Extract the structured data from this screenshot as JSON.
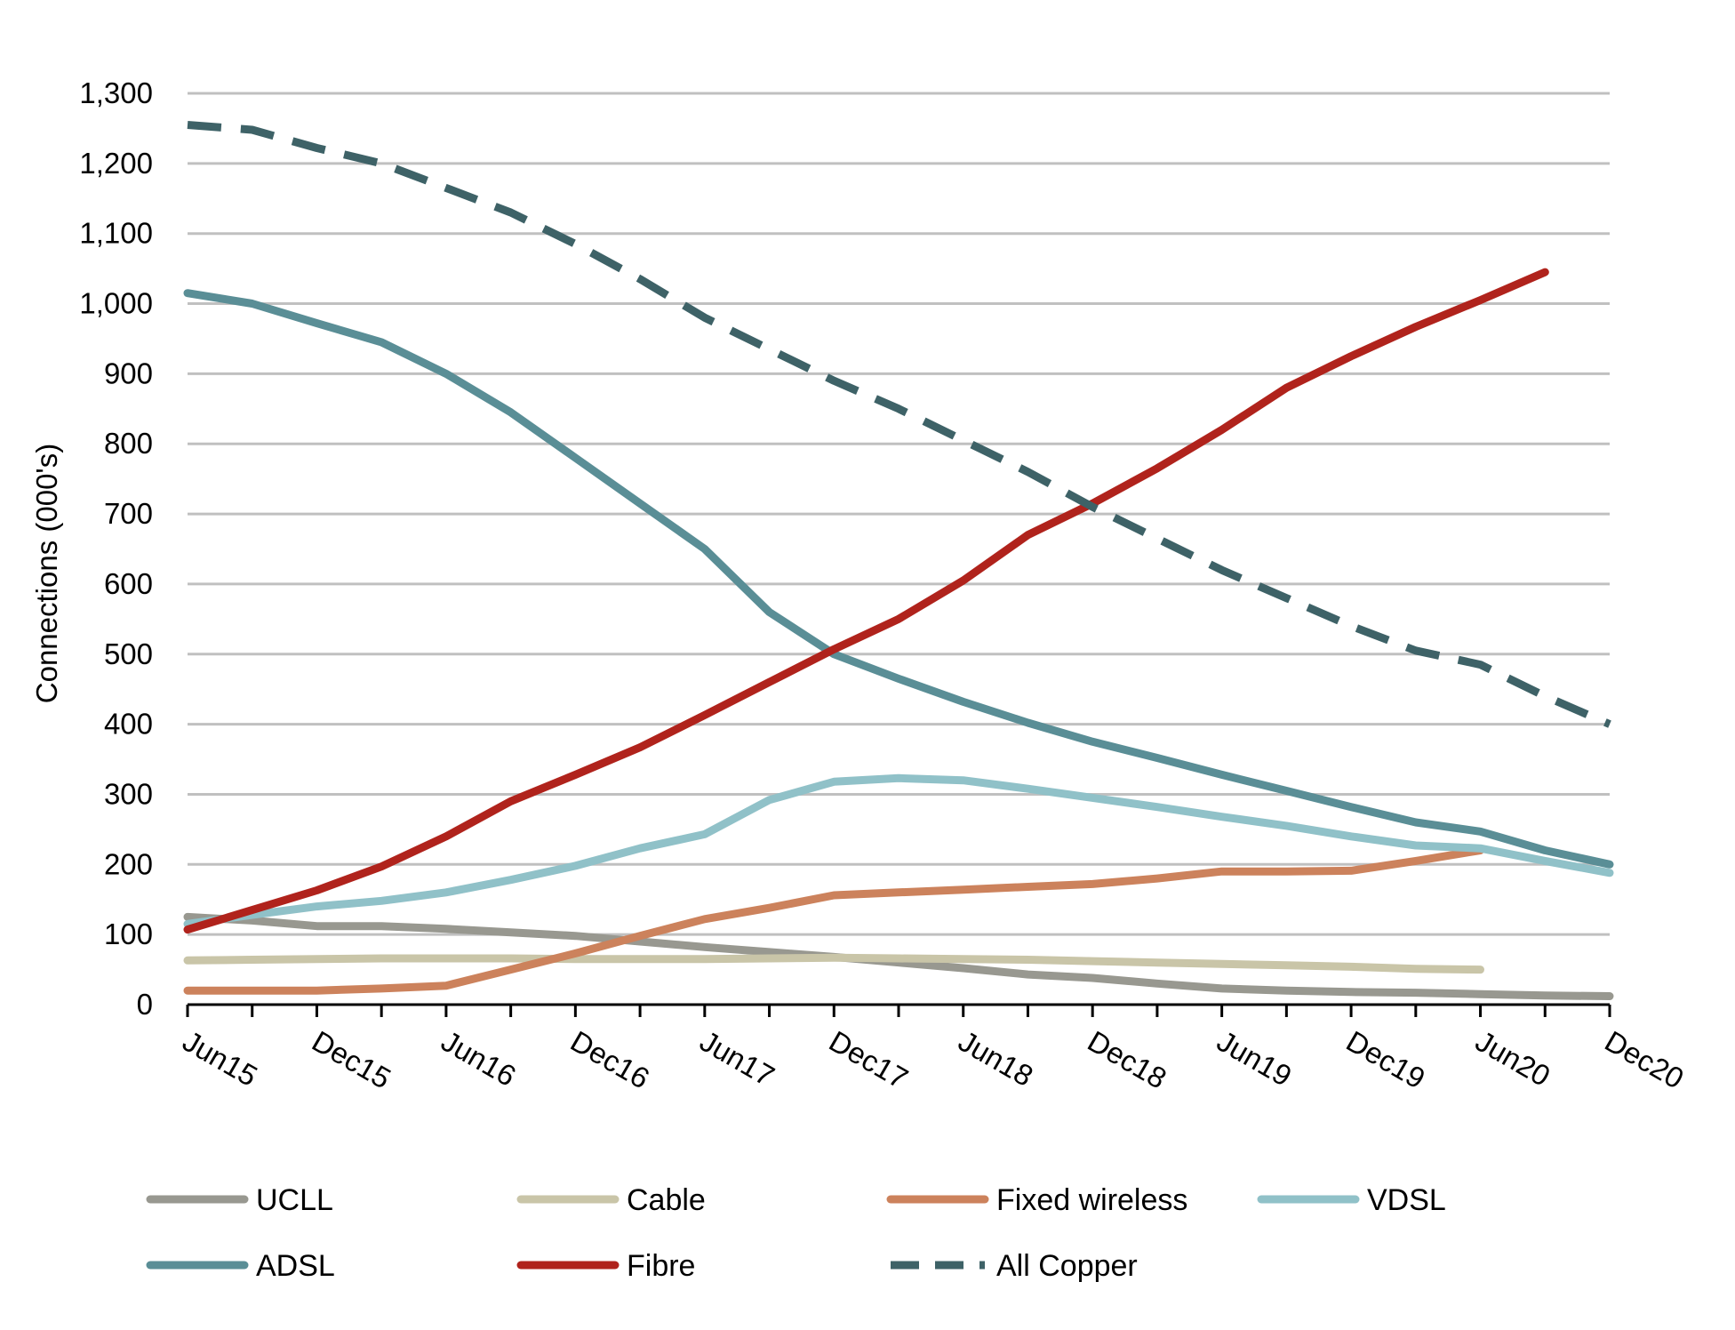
{
  "chart_data": {
    "type": "line",
    "title": "",
    "xlabel": "",
    "ylabel": "Connections (000's)",
    "ylim": [
      0,
      1300
    ],
    "yticks": [
      0,
      100,
      200,
      300,
      400,
      500,
      600,
      700,
      800,
      900,
      1000,
      1100,
      1200,
      1300
    ],
    "ytick_labels": [
      "0",
      "100",
      "200",
      "300",
      "400",
      "500",
      "600",
      "700",
      "800",
      "900",
      "1,000",
      "1,100",
      "1,200",
      "1,300"
    ],
    "x": [
      "Jun15",
      "Sep15",
      "Dec15",
      "Mar16",
      "Jun16",
      "Sep16",
      "Dec16",
      "Mar17",
      "Jun17",
      "Sep17",
      "Dec17",
      "Mar18",
      "Jun18",
      "Sep18",
      "Dec18",
      "Mar19",
      "Jun19",
      "Sep19",
      "Dec19",
      "Mar20",
      "Jun20",
      "Sep20",
      "Dec20"
    ],
    "xtick_labels": [
      "Jun15",
      "Dec15",
      "Jun16",
      "Dec16",
      "Jun17",
      "Dec17",
      "Jun18",
      "Dec18",
      "Jun19",
      "Dec19",
      "Jun20",
      "Dec20"
    ],
    "grid": true,
    "legend_position": "bottom",
    "series": [
      {
        "name": "UCLL",
        "color": "#989890",
        "dash": false,
        "values": [
          125,
          120,
          112,
          112,
          108,
          103,
          98,
          90,
          82,
          75,
          68,
          60,
          52,
          43,
          38,
          30,
          23,
          20,
          18,
          17,
          15,
          13,
          12
        ]
      },
      {
        "name": "Cable",
        "color": "#c9c5a8",
        "dash": false,
        "values": [
          63,
          64,
          65,
          66,
          66,
          66,
          65,
          65,
          65,
          66,
          67,
          66,
          65,
          64,
          62,
          60,
          58,
          56,
          54,
          51,
          50,
          null,
          null
        ]
      },
      {
        "name": "Fixed wireless",
        "color": "#cc825c",
        "dash": false,
        "values": [
          20,
          20,
          20,
          23,
          27,
          50,
          73,
          98,
          122,
          138,
          156,
          160,
          164,
          168,
          172,
          180,
          190,
          190,
          191,
          205,
          220,
          null,
          null
        ]
      },
      {
        "name": "VDSL",
        "color": "#90c1c8",
        "dash": false,
        "values": [
          115,
          128,
          140,
          148,
          160,
          178,
          198,
          223,
          243,
          292,
          318,
          323,
          320,
          308,
          295,
          282,
          268,
          255,
          240,
          227,
          223,
          205,
          188
        ]
      },
      {
        "name": "ADSL",
        "color": "#5a8e96",
        "dash": false,
        "values": [
          1015,
          1000,
          972,
          945,
          900,
          845,
          780,
          715,
          650,
          560,
          500,
          465,
          432,
          402,
          375,
          352,
          328,
          305,
          282,
          260,
          247,
          220,
          200
        ]
      },
      {
        "name": "Fibre",
        "color": "#b0231c",
        "dash": false,
        "values": [
          107,
          135,
          163,
          197,
          240,
          290,
          328,
          367,
          413,
          460,
          507,
          550,
          605,
          670,
          715,
          765,
          820,
          880,
          925,
          967,
          1005,
          1045,
          null
        ]
      },
      {
        "name": "All Copper",
        "color": "#3e6267",
        "dash": true,
        "values": [
          1255,
          1248,
          1222,
          1200,
          1165,
          1130,
          1085,
          1035,
          980,
          935,
          890,
          850,
          805,
          760,
          710,
          665,
          620,
          580,
          540,
          505,
          485,
          440,
          400
        ]
      }
    ]
  }
}
